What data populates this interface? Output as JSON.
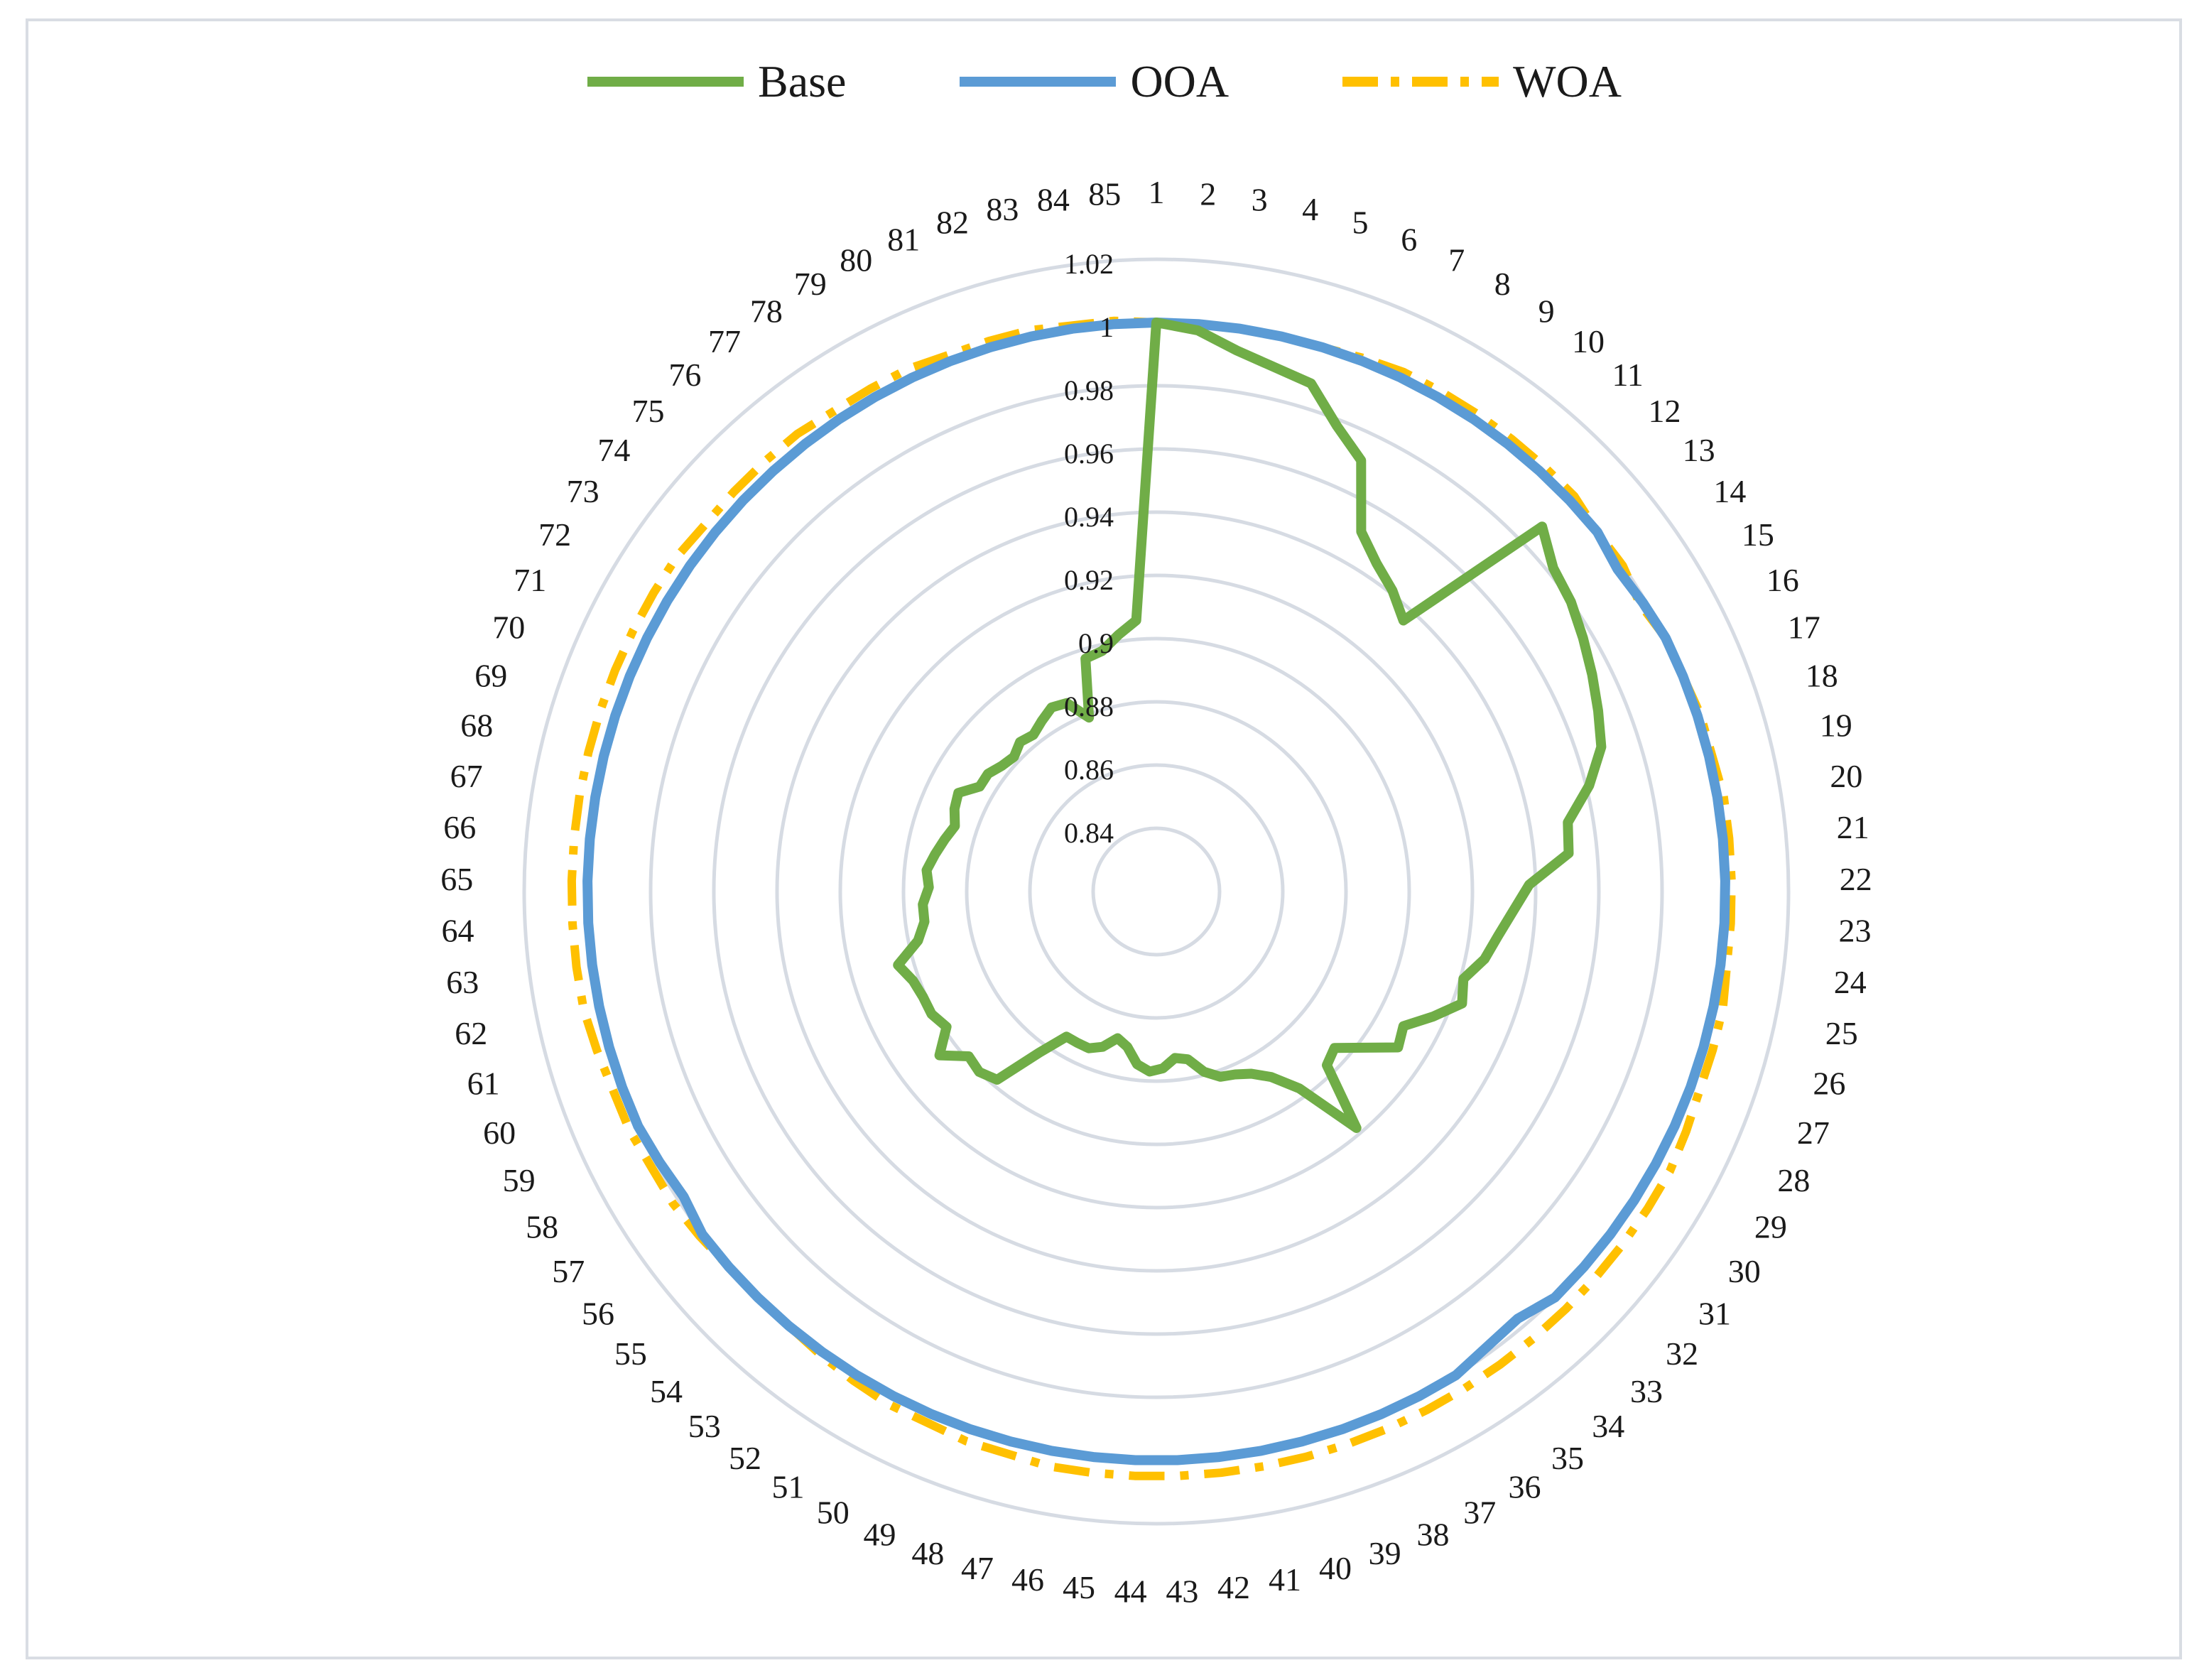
{
  "chart_data": {
    "type": "radar",
    "title": "",
    "categories": [
      "1",
      "2",
      "3",
      "4",
      "5",
      "6",
      "7",
      "8",
      "9",
      "10",
      "11",
      "12",
      "13",
      "14",
      "15",
      "16",
      "17",
      "18",
      "19",
      "20",
      "21",
      "22",
      "23",
      "24",
      "25",
      "26",
      "27",
      "28",
      "29",
      "30",
      "31",
      "32",
      "33",
      "34",
      "35",
      "36",
      "37",
      "38",
      "39",
      "40",
      "41",
      "42",
      "43",
      "44",
      "45",
      "46",
      "47",
      "48",
      "49",
      "50",
      "51",
      "52",
      "53",
      "54",
      "55",
      "56",
      "57",
      "58",
      "59",
      "60",
      "61",
      "62",
      "63",
      "64",
      "65",
      "66",
      "67",
      "68",
      "69",
      "70",
      "71",
      "72",
      "73",
      "74",
      "75",
      "76",
      "77",
      "78",
      "79",
      "80",
      "81",
      "82",
      "83",
      "84",
      "85"
    ],
    "rlim": [
      0.82,
      1.02
    ],
    "ticks": [
      0.84,
      0.86,
      0.88,
      0.9,
      0.92,
      0.94,
      0.96,
      0.98,
      1,
      1.02
    ],
    "tick_labels": [
      "0.84",
      "0.86",
      "0.88",
      "0.9",
      "0.92",
      "0.94",
      "0.96",
      "0.98",
      "1",
      "1.02"
    ],
    "legend_position": "top",
    "series": [
      {
        "name": "Base",
        "color": "#70ad47",
        "dash": "solid",
        "values": [
          1.0,
          0.998,
          0.993,
          0.99,
          0.988,
          0.978,
          0.971,
          0.951,
          0.945,
          0.941,
          0.936,
          0.988,
          0.982,
          0.98,
          0.977,
          0.974,
          0.971,
          0.968,
          0.961,
          0.952,
          0.951,
          0.938,
          0.933,
          0.929,
          0.926,
          0.921,
          0.923,
          0.916,
          0.909,
          0.911,
          0.902,
          0.895,
          0.897,
          0.918,
          0.897,
          0.889,
          0.885,
          0.883,
          0.882,
          0.879,
          0.874,
          0.873,
          0.876,
          0.877,
          0.875,
          0.87,
          0.868,
          0.872,
          0.874,
          0.874,
          0.874,
          0.883,
          0.898,
          0.9,
          0.899,
          0.906,
          0.899,
          0.901,
          0.901,
          0.902,
          0.905,
          0.897,
          0.894,
          0.894,
          0.892,
          0.893,
          0.891,
          0.889,
          0.887,
          0.889,
          0.89,
          0.885,
          0.885,
          0.883,
          0.882,
          0.884,
          0.883,
          0.885,
          0.887,
          0.886,
          0.879,
          0.897,
          0.898,
          0.902,
          0.906
        ]
      },
      {
        "name": "OOA",
        "color": "#5b9bd5",
        "dash": "solid",
        "values": [
          1.0,
          1.0,
          1.0,
          1.0,
          1.0,
          1.0,
          1.0,
          1.0,
          1.0,
          1.0,
          1.0,
          1.0,
          1.0,
          0.998,
          0.999,
          1.0,
          1.0,
          1.0,
          1.0,
          1.0,
          1.0,
          1.0,
          1.0,
          1.0,
          1.0,
          1.0,
          1.0,
          1.0,
          1.0,
          1.0,
          1.0,
          1.0,
          1.0,
          0.997,
          0.998,
          1.0,
          1.0,
          1.0,
          1.0,
          1.0,
          1.0,
          1.0,
          1.0,
          1.0,
          1.0,
          1.0,
          1.0,
          1.0,
          1.0,
          1.0,
          1.0,
          1.0,
          1.0,
          1.0,
          1.0,
          1.0,
          0.998,
          0.999,
          1.0,
          1.0,
          1.0,
          1.0,
          1.0,
          1.0,
          1.0,
          1.0,
          1.0,
          1.0,
          1.0,
          1.0,
          1.0,
          1.0,
          1.0,
          1.0,
          1.0,
          1.0,
          1.0,
          1.0,
          1.0,
          1.0,
          1.0,
          1.0,
          1.0,
          1.0,
          1.0
        ]
      },
      {
        "name": "WOA",
        "color": "#ffc000",
        "dash": "dash-dot",
        "values": [
          1.0,
          1.0,
          1.0,
          1.0,
          1.0,
          1.001,
          1.002,
          1.002,
          1.002,
          1.002,
          1.002,
          1.002,
          1.0,
          1.0,
          0.998,
          1.0,
          1.0,
          1.001,
          1.001,
          1.002,
          1.002,
          1.002,
          1.002,
          1.002,
          1.003,
          1.003,
          1.003,
          1.004,
          1.005,
          1.005,
          1.005,
          1.005,
          1.005,
          1.005,
          1.005,
          1.005,
          1.005,
          1.005,
          1.005,
          1.005,
          1.005,
          1.005,
          1.005,
          1.005,
          1.005,
          1.005,
          1.004,
          1.004,
          1.003,
          1.003,
          1.002,
          1.001,
          1.0,
          1.0,
          1.0,
          1.001,
          1.002,
          1.002,
          1.003,
          1.003,
          1.004,
          1.005,
          1.005,
          1.005,
          1.005,
          1.005,
          1.005,
          1.005,
          1.005,
          1.005,
          1.005,
          1.005,
          1.005,
          1.004,
          1.004,
          1.004,
          1.004,
          1.003,
          1.003,
          1.003,
          1.002,
          1.002,
          1.002,
          1.001,
          1.001
        ]
      }
    ]
  }
}
